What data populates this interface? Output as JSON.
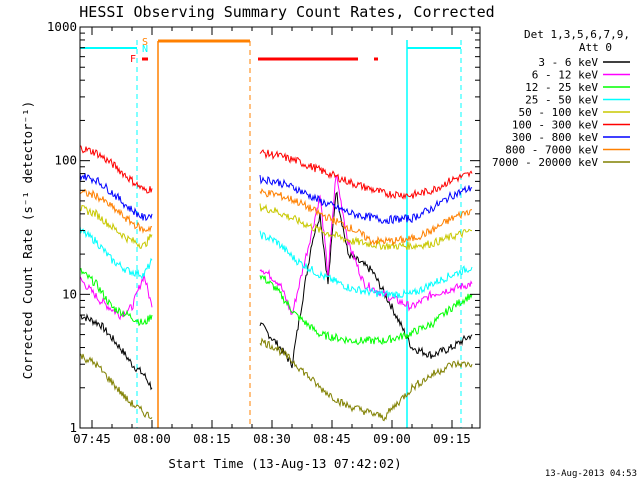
{
  "chart_data": {
    "type": "line",
    "title": "HESSI Observing Summary Count Rates, Corrected",
    "ylabel": "Corrected Count Rate (s⁻¹ detector⁻¹)",
    "xlabel": "Start Time (13-Aug-13 07:42:02)",
    "footer_date": "13-Aug-2013 04:53",
    "y_scale": "log",
    "ylim": [
      1,
      1000
    ],
    "xlim": [
      "07:42",
      "09:22"
    ],
    "x_ticks": [
      "07:45",
      "08:00",
      "08:15",
      "08:30",
      "08:45",
      "09:00",
      "09:15"
    ],
    "y_ticks": [
      "1",
      "10",
      "100",
      "1000"
    ],
    "legend_title": [
      "Det 1,3,5,6,7,9,",
      "Att 0"
    ],
    "flag_labels": {
      "S": "S",
      "N": "N",
      "F": "F"
    },
    "flag_colors": {
      "S": "#ff8000",
      "N": "#00ffff",
      "F": "#ff0000"
    },
    "series": [
      {
        "name": "3 - 6 keV",
        "color": "#000000",
        "segments": [
          [
            [
              "07:42",
              7
            ],
            [
              "07:47",
              6
            ],
            [
              "07:52",
              4
            ],
            [
              "07:55",
              3
            ],
            [
              "07:58",
              2.5
            ],
            [
              "08:00",
              2
            ]
          ],
          [
            [
              "08:27",
              6
            ],
            [
              "08:32",
              4
            ],
            [
              "08:35",
              3
            ],
            [
              "08:40",
              25
            ],
            [
              "08:42",
              40
            ],
            [
              "08:44",
              12
            ],
            [
              "08:46",
              60
            ],
            [
              "08:49",
              20
            ],
            [
              "08:55",
              15
            ],
            [
              "09:00",
              8
            ],
            [
              "09:05",
              4
            ],
            [
              "09:10",
              3.5
            ],
            [
              "09:15",
              4
            ],
            [
              "09:20",
              5
            ]
          ]
        ]
      },
      {
        "name": "6 - 12 keV",
        "color": "#ff00ff",
        "segments": [
          [
            [
              "07:42",
              13
            ],
            [
              "07:47",
              9
            ],
            [
              "07:52",
              7
            ],
            [
              "07:55",
              8
            ],
            [
              "07:58",
              14
            ],
            [
              "08:00",
              8
            ]
          ],
          [
            [
              "08:27",
              16
            ],
            [
              "08:32",
              12
            ],
            [
              "08:35",
              7
            ],
            [
              "08:40",
              30
            ],
            [
              "08:42",
              55
            ],
            [
              "08:44",
              14
            ],
            [
              "08:46",
              80
            ],
            [
              "08:49",
              25
            ],
            [
              "08:53",
              12
            ],
            [
              "08:58",
              10
            ],
            [
              "09:05",
              8
            ],
            [
              "09:10",
              10
            ],
            [
              "09:15",
              11
            ],
            [
              "09:20",
              12
            ]
          ]
        ]
      },
      {
        "name": "12 - 25 keV",
        "color": "#00ff00",
        "segments": [
          [
            [
              "07:42",
              15
            ],
            [
              "07:46",
              12
            ],
            [
              "07:50",
              8
            ],
            [
              "07:54",
              7
            ],
            [
              "07:58",
              6
            ],
            [
              "08:00",
              7
            ]
          ],
          [
            [
              "08:27",
              14
            ],
            [
              "08:31",
              11
            ],
            [
              "08:36",
              7
            ],
            [
              "08:42",
              5
            ],
            [
              "08:50",
              4.5
            ],
            [
              "08:58",
              4.5
            ],
            [
              "09:04",
              5
            ],
            [
              "09:10",
              6
            ],
            [
              "09:15",
              8
            ],
            [
              "09:20",
              10
            ]
          ]
        ]
      },
      {
        "name": "25 - 50 keV",
        "color": "#00ffff",
        "segments": [
          [
            [
              "07:42",
              30
            ],
            [
              "07:46",
              25
            ],
            [
              "07:50",
              18
            ],
            [
              "07:54",
              15
            ],
            [
              "07:58",
              14
            ],
            [
              "08:00",
              18
            ]
          ],
          [
            [
              "08:27",
              28
            ],
            [
              "08:31",
              25
            ],
            [
              "08:36",
              18
            ],
            [
              "08:42",
              14
            ],
            [
              "08:50",
              11
            ],
            [
              "08:58",
              10
            ],
            [
              "09:05",
              10
            ],
            [
              "09:10",
              12
            ],
            [
              "09:15",
              14
            ],
            [
              "09:20",
              16
            ]
          ]
        ]
      },
      {
        "name": "50 - 100 keV",
        "color": "#c8c800",
        "segments": [
          [
            [
              "07:42",
              44
            ],
            [
              "07:46",
              40
            ],
            [
              "07:50",
              32
            ],
            [
              "07:54",
              26
            ],
            [
              "07:58",
              23
            ],
            [
              "08:00",
              28
            ]
          ],
          [
            [
              "08:27",
              45
            ],
            [
              "08:31",
              42
            ],
            [
              "08:36",
              36
            ],
            [
              "08:42",
              30
            ],
            [
              "08:50",
              25
            ],
            [
              "08:58",
              23
            ],
            [
              "09:05",
              23
            ],
            [
              "09:10",
              24
            ],
            [
              "09:15",
              27
            ],
            [
              "09:20",
              30
            ]
          ]
        ]
      },
      {
        "name": "100 - 300 keV",
        "color": "#ff0000",
        "segments": [
          [
            [
              "07:42",
              125
            ],
            [
              "07:46",
              115
            ],
            [
              "07:50",
              95
            ],
            [
              "07:54",
              75
            ],
            [
              "07:58",
              60
            ],
            [
              "08:00",
              62
            ]
          ],
          [
            [
              "08:27",
              115
            ],
            [
              "08:31",
              110
            ],
            [
              "08:36",
              100
            ],
            [
              "08:42",
              85
            ],
            [
              "08:50",
              68
            ],
            [
              "08:58",
              57
            ],
            [
              "09:05",
              55
            ],
            [
              "09:10",
              60
            ],
            [
              "09:15",
              72
            ],
            [
              "09:20",
              80
            ]
          ]
        ]
      },
      {
        "name": "300 - 800 keV",
        "color": "#0000ff",
        "segments": [
          [
            [
              "07:42",
              78
            ],
            [
              "07:46",
              72
            ],
            [
              "07:50",
              58
            ],
            [
              "07:54",
              45
            ],
            [
              "07:58",
              37
            ],
            [
              "08:00",
              40
            ]
          ],
          [
            [
              "08:27",
              73
            ],
            [
              "08:31",
              70
            ],
            [
              "08:36",
              62
            ],
            [
              "08:42",
              50
            ],
            [
              "08:50",
              40
            ],
            [
              "08:58",
              36
            ],
            [
              "09:05",
              37
            ],
            [
              "09:10",
              44
            ],
            [
              "09:15",
              55
            ],
            [
              "09:20",
              63
            ]
          ]
        ]
      },
      {
        "name": "800 - 7000 keV",
        "color": "#ff8000",
        "segments": [
          [
            [
              "07:42",
              58
            ],
            [
              "07:46",
              55
            ],
            [
              "07:50",
              45
            ],
            [
              "07:54",
              36
            ],
            [
              "07:58",
              30
            ],
            [
              "08:00",
              32
            ]
          ],
          [
            [
              "08:27",
              58
            ],
            [
              "08:31",
              56
            ],
            [
              "08:36",
              50
            ],
            [
              "08:42",
              40
            ],
            [
              "08:50",
              31
            ],
            [
              "08:55",
              25
            ],
            [
              "09:00",
              25
            ],
            [
              "09:05",
              26
            ],
            [
              "09:10",
              30
            ],
            [
              "09:15",
              37
            ],
            [
              "09:20",
              43
            ]
          ]
        ]
      },
      {
        "name": "7000 - 20000 keV",
        "color": "#808000",
        "segments": [
          [
            [
              "07:42",
              3.5
            ],
            [
              "07:46",
              3
            ],
            [
              "07:50",
              2.2
            ],
            [
              "07:54",
              1.6
            ],
            [
              "07:58",
              1.3
            ],
            [
              "08:00",
              1.2
            ]
          ],
          [
            [
              "08:27",
              4.5
            ],
            [
              "08:31",
              4
            ],
            [
              "08:36",
              3
            ],
            [
              "08:42",
              2
            ],
            [
              "08:48",
              1.5
            ],
            [
              "08:58",
              1.2
            ],
            [
              "09:05",
              2
            ],
            [
              "09:10",
              2.5
            ],
            [
              "09:15",
              3
            ],
            [
              "09:20",
              3
            ]
          ]
        ]
      }
    ]
  }
}
